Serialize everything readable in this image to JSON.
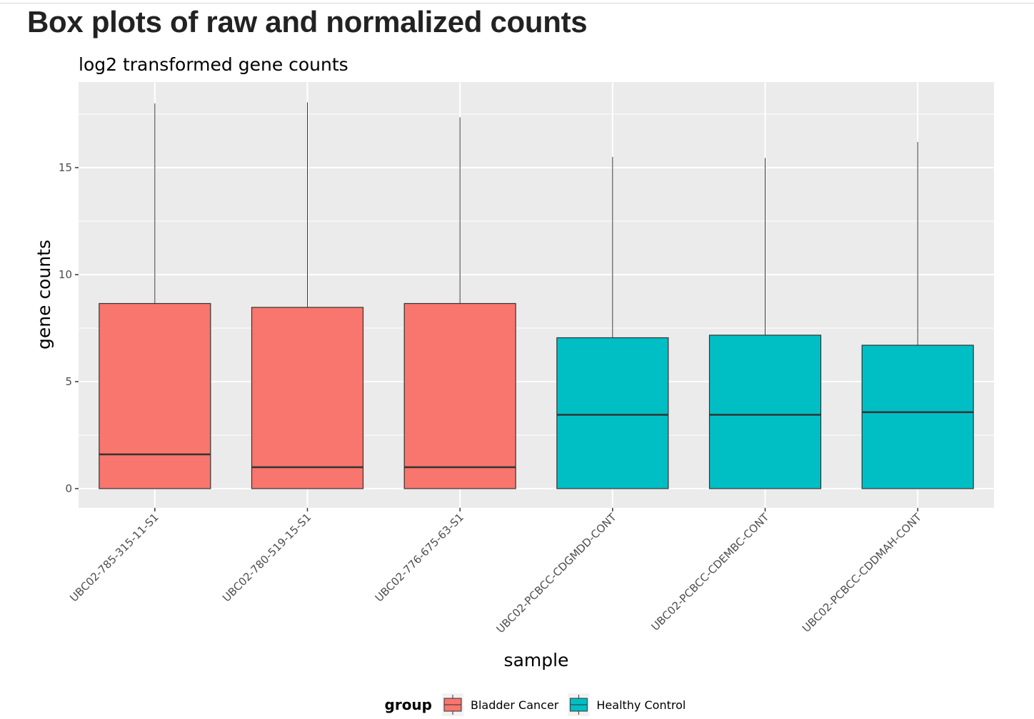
{
  "page": {
    "title": "Box plots of raw and normalized counts"
  },
  "chart_data": {
    "type": "boxplot",
    "title": "log2 transformed gene counts",
    "xlabel": "sample",
    "ylabel": "gene counts",
    "ylim": [
      -0.9,
      19.0
    ],
    "yticks": [
      0,
      5,
      10,
      15
    ],
    "grid": true,
    "legend": {
      "title": "group",
      "position": "bottom",
      "entries": [
        {
          "label": "Bladder Cancer",
          "color": "#F8766D"
        },
        {
          "label": "Healthy Control",
          "color": "#00BFC4"
        }
      ]
    },
    "categories": [
      "UBC02-785-315-11-S1",
      "UBC02-780-519-15-S1",
      "UBC02-776-675-63-S1",
      "UBC02-PCBCC-CDGMDD-CONT",
      "UBC02-PCBCC-CDEMBC-CONT",
      "UBC02-PCBCC-CDDMAH-CONT"
    ],
    "boxes": [
      {
        "sample": "UBC02-785-315-11-S1",
        "group": "Bladder Cancer",
        "min": 0,
        "q1": 0,
        "median": 1.6,
        "q3": 8.65,
        "max": 18.0
      },
      {
        "sample": "UBC02-780-519-15-S1",
        "group": "Bladder Cancer",
        "min": 0,
        "q1": 0,
        "median": 1.0,
        "q3": 8.47,
        "max": 18.05
      },
      {
        "sample": "UBC02-776-675-63-S1",
        "group": "Bladder Cancer",
        "min": 0,
        "q1": 0,
        "median": 1.0,
        "q3": 8.65,
        "max": 17.35
      },
      {
        "sample": "UBC02-PCBCC-CDGMDD-CONT",
        "group": "Healthy Control",
        "min": 0,
        "q1": 0,
        "median": 3.45,
        "q3": 7.05,
        "max": 15.5
      },
      {
        "sample": "UBC02-PCBCC-CDEMBC-CONT",
        "group": "Healthy Control",
        "min": 0,
        "q1": 0,
        "median": 3.45,
        "q3": 7.17,
        "max": 15.45
      },
      {
        "sample": "UBC02-PCBCC-CDDMAH-CONT",
        "group": "Healthy Control",
        "min": 0,
        "q1": 0,
        "median": 3.57,
        "q3": 6.7,
        "max": 16.2
      }
    ],
    "colors": {
      "panel_background": "#EBEBEB",
      "grid": "#FFFFFF",
      "box_outline": "#333333"
    }
  }
}
